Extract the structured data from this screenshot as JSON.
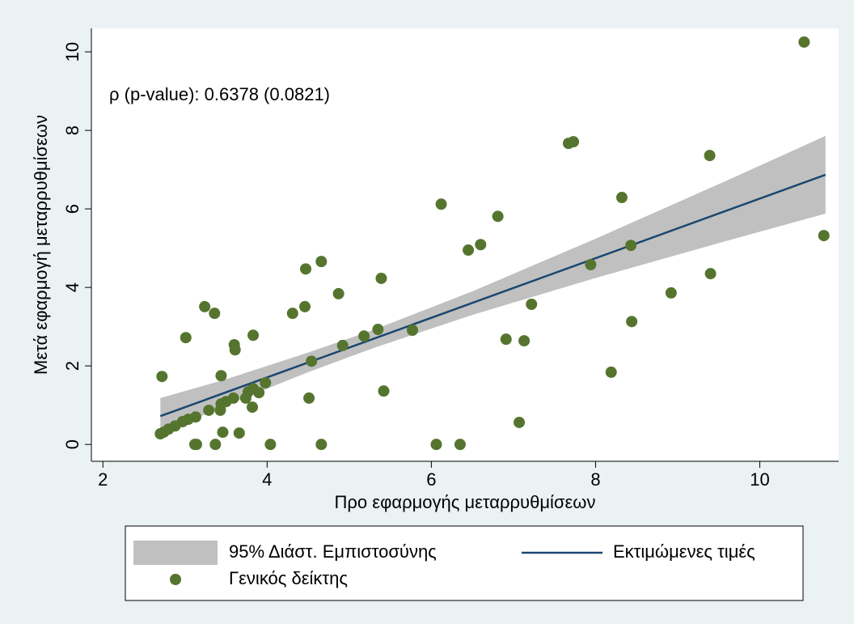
{
  "chart_data": {
    "type": "scatter",
    "annotation": "ρ (p-value): 0.6378 (0.0821)",
    "x_label": "Προ εφαρμογής μεταρρυθμίσεων",
    "y_label": "Μετά εφαρμογή μεταρρυθμίσεων",
    "xlim": [
      1.86,
      10.96
    ],
    "ylim": [
      -0.43,
      10.6
    ],
    "xticks": [
      2,
      4,
      6,
      8,
      10
    ],
    "yticks": [
      0,
      2,
      4,
      6,
      8,
      10
    ],
    "grid": false,
    "legend": "bottom",
    "series": [
      {
        "name": "95% Διάστ. Εμπιστοσύνης",
        "type": "area",
        "color": "#c0c0c0",
        "x": [
          2.7,
          3.5,
          4.5,
          5.3,
          6.5,
          8,
          9.5,
          10.8
        ],
        "lower": [
          0.26,
          1.0,
          1.84,
          2.46,
          3.3,
          4.24,
          5.13,
          5.88
        ],
        "upper": [
          1.18,
          1.66,
          2.34,
          2.92,
          3.9,
          5.24,
          6.63,
          7.86
        ]
      },
      {
        "name": "Εκτιμώμενες τιμές",
        "type": "line",
        "color": "#1a476f",
        "x": [
          2.7,
          10.8
        ],
        "values": [
          0.72,
          6.87
        ]
      },
      {
        "name": "Γενικός δείκτης",
        "type": "scatter",
        "color": "#55752f",
        "x": [
          10.54,
          7.73,
          7.67,
          9.39,
          8.32,
          6.12,
          6.81,
          10.78,
          6.6,
          6.45,
          8.43,
          7.94,
          9.4,
          4.66,
          4.47,
          5.39,
          4.87,
          8.92,
          7.22,
          4.46,
          4.31,
          3.36,
          3.24,
          8.44,
          3.01,
          3.83,
          5.18,
          5.35,
          5.77,
          6.91,
          7.13,
          3.6,
          3.61,
          4.92,
          4.54,
          2.72,
          3.44,
          8.19,
          3.98,
          5.42,
          3.77,
          3.83,
          3.9,
          3.74,
          3.59,
          4.51,
          3.5,
          3.44,
          3.82,
          3.43,
          3.29,
          3.13,
          3.04,
          2.97,
          2.88,
          2.8,
          2.74,
          2.7,
          3.46,
          3.66,
          7.07,
          3.12,
          3.14,
          3.37,
          4.04,
          4.66,
          6.06,
          6.35
        ],
        "values": [
          10.25,
          7.71,
          7.67,
          7.36,
          6.29,
          6.12,
          5.81,
          5.32,
          5.09,
          4.95,
          5.07,
          4.58,
          4.35,
          4.66,
          4.47,
          4.23,
          3.84,
          3.86,
          3.57,
          3.51,
          3.34,
          3.34,
          3.51,
          3.13,
          2.72,
          2.78,
          2.76,
          2.93,
          2.91,
          2.68,
          2.64,
          2.54,
          2.41,
          2.52,
          2.12,
          1.73,
          1.75,
          1.84,
          1.57,
          1.36,
          1.34,
          1.42,
          1.32,
          1.18,
          1.18,
          1.18,
          1.09,
          1.03,
          0.95,
          0.87,
          0.87,
          0.7,
          0.64,
          0.58,
          0.47,
          0.39,
          0.31,
          0.27,
          0.31,
          0.29,
          0.56,
          0,
          0,
          0,
          0,
          0,
          0,
          0
        ]
      }
    ]
  }
}
